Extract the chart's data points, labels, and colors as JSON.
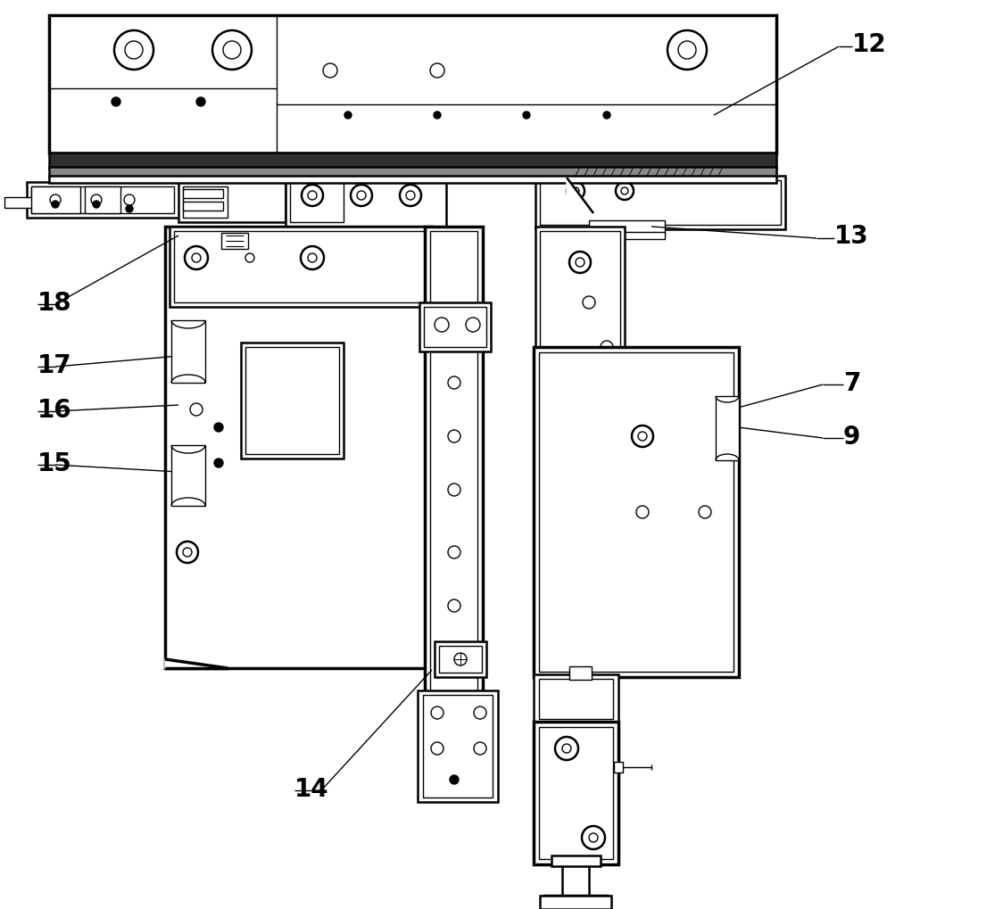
{
  "background_color": "#ffffff",
  "line_color": "#000000",
  "lw": 1.0,
  "lw2": 1.8,
  "lw3": 2.5,
  "fig_width": 11.24,
  "fig_height": 10.2,
  "font_size": 20
}
